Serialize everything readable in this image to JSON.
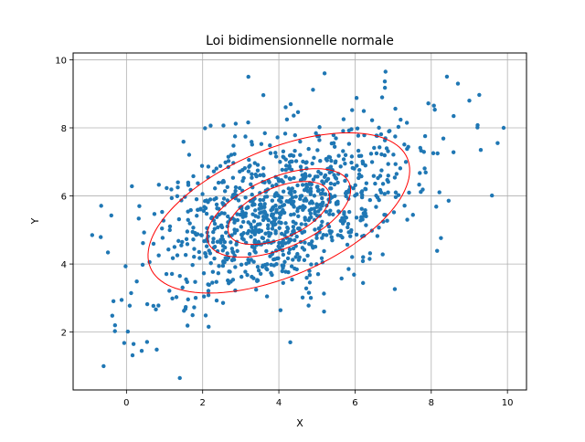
{
  "chart_data": {
    "type": "scatter",
    "title": "Loi bidimensionnelle normale",
    "xlabel": "X",
    "ylabel": "Y",
    "xlim": [
      -1.4,
      10.5
    ],
    "ylim": [
      0.3,
      10.2
    ],
    "xticks": [
      0,
      2,
      4,
      6,
      8,
      10
    ],
    "yticks": [
      2,
      4,
      6,
      8,
      10
    ],
    "grid": true,
    "legend": "none",
    "point_color": "#1f77b4",
    "ellipse_color": "#ff0000",
    "distribution": {
      "mean": [
        4.0,
        5.5
      ],
      "cov": [
        [
          3.2,
          1.2
        ],
        [
          1.2,
          1.8
        ]
      ],
      "n_points": 1000
    },
    "ellipses": [
      {
        "cx": 4.0,
        "cy": 5.5,
        "rx": 3.74,
        "ry": 1.83,
        "angle_deg": 27
      },
      {
        "cx": 4.0,
        "cy": 5.5,
        "rx": 2.05,
        "ry": 1.02,
        "angle_deg": 27
      },
      {
        "cx": 4.0,
        "cy": 5.5,
        "rx": 1.45,
        "ry": 0.73,
        "angle_deg": 27
      }
    ],
    "notable_points": [
      {
        "x": -0.9,
        "y": 4.85
      },
      {
        "x": -0.6,
        "y": 1.0
      },
      {
        "x": 1.4,
        "y": 0.65
      },
      {
        "x": 4.3,
        "y": 1.7
      },
      {
        "x": 9.9,
        "y": 8.0
      },
      {
        "x": 9.3,
        "y": 7.35
      },
      {
        "x": 6.8,
        "y": 9.65
      },
      {
        "x": 3.2,
        "y": 9.5
      },
      {
        "x": 5.2,
        "y": 9.6
      },
      {
        "x": 0.4,
        "y": 1.45
      },
      {
        "x": -0.3,
        "y": 2.2
      },
      {
        "x": 9.0,
        "y": 8.8
      },
      {
        "x": 8.7,
        "y": 9.3
      }
    ]
  }
}
